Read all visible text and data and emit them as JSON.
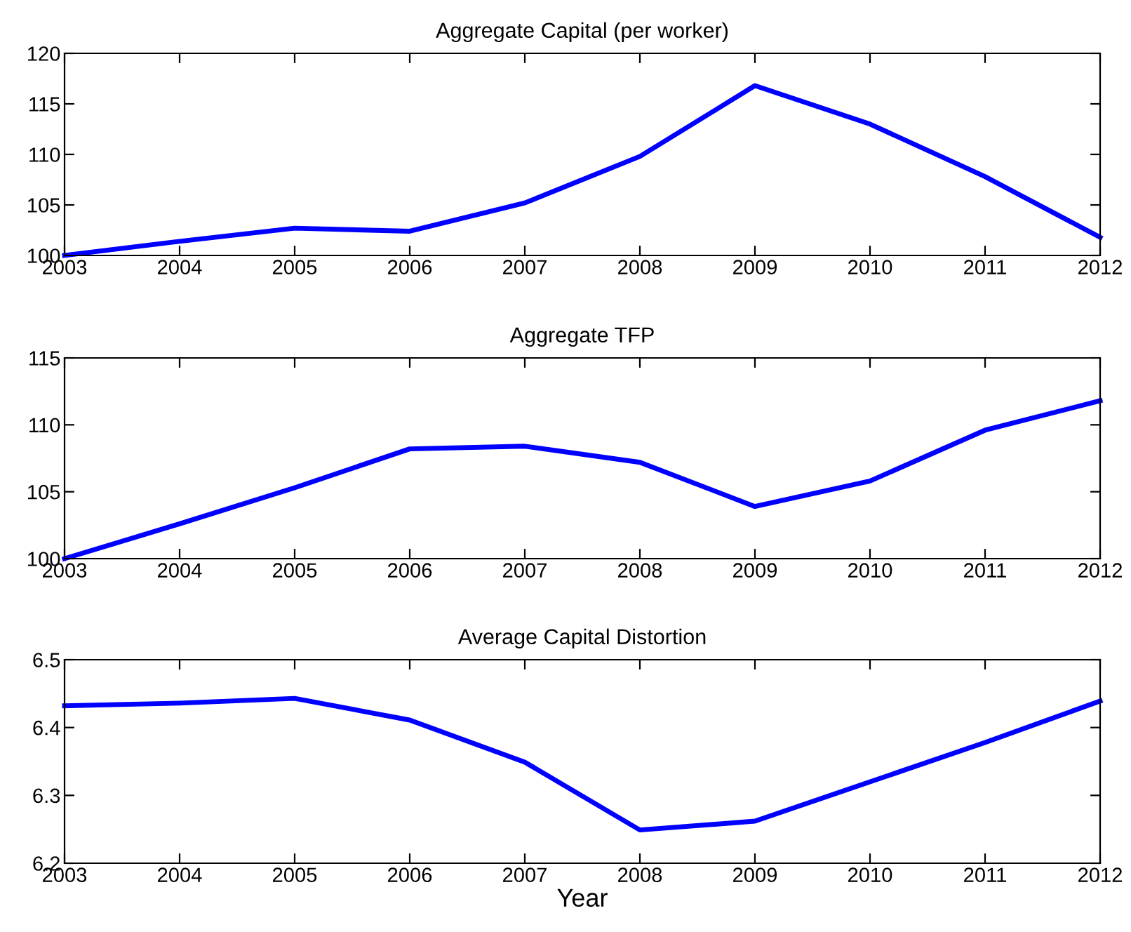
{
  "chart_data": [
    {
      "type": "line",
      "title": "Aggregate Capital (per worker)",
      "x": [
        2003,
        2004,
        2005,
        2006,
        2007,
        2008,
        2009,
        2010,
        2011,
        2012
      ],
      "series": [
        {
          "color": "#0000ff",
          "values": [
            100,
            101.4,
            102.7,
            102.4,
            105.2,
            109.8,
            116.8,
            113.0,
            107.8,
            101.8
          ]
        }
      ],
      "xlim": [
        2003,
        2012
      ],
      "xticks": [
        2003,
        2004,
        2005,
        2006,
        2007,
        2008,
        2009,
        2010,
        2011,
        2012
      ],
      "ylim": [
        100,
        120
      ],
      "yticks": [
        100,
        105,
        110,
        115,
        120
      ],
      "grid": false
    },
    {
      "type": "line",
      "title": "Aggregate TFP",
      "x": [
        2003,
        2004,
        2005,
        2006,
        2007,
        2008,
        2009,
        2010,
        2011,
        2012
      ],
      "series": [
        {
          "color": "#0000ff",
          "values": [
            100,
            102.6,
            105.3,
            108.2,
            108.4,
            107.2,
            103.9,
            105.8,
            109.6,
            111.8
          ]
        }
      ],
      "xlim": [
        2003,
        2012
      ],
      "xticks": [
        2003,
        2004,
        2005,
        2006,
        2007,
        2008,
        2009,
        2010,
        2011,
        2012
      ],
      "ylim": [
        100,
        115
      ],
      "yticks": [
        100,
        105,
        110,
        115
      ],
      "grid": false
    },
    {
      "type": "line",
      "title": "Average Capital Distortion",
      "xlabel": "Year",
      "x": [
        2003,
        2004,
        2005,
        2006,
        2007,
        2008,
        2009,
        2010,
        2011,
        2012
      ],
      "series": [
        {
          "color": "#0000ff",
          "values": [
            6.432,
            6.436,
            6.443,
            6.411,
            6.349,
            6.249,
            6.262,
            6.32,
            6.378,
            6.439
          ]
        }
      ],
      "xlim": [
        2003,
        2012
      ],
      "xticks": [
        2003,
        2004,
        2005,
        2006,
        2007,
        2008,
        2009,
        2010,
        2011,
        2012
      ],
      "ylim": [
        6.2,
        6.5
      ],
      "yticks": [
        6.2,
        6.3,
        6.4,
        6.5
      ],
      "grid": false
    }
  ]
}
